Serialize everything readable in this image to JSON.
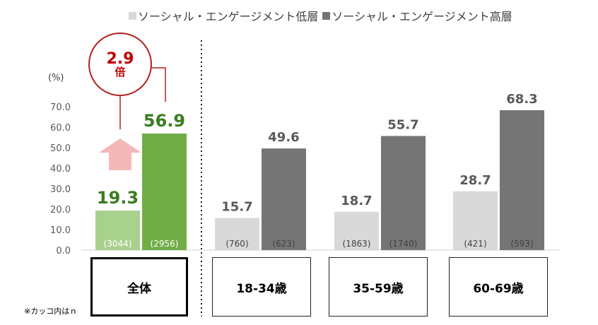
{
  "legend": {
    "low": {
      "label": "ソーシャル・エンゲージメント低層",
      "color": "#d9d9d9"
    },
    "high": {
      "label": "ソーシャル・エンゲージメント高層",
      "color": "#757575"
    }
  },
  "unit_label": "(%)",
  "note": "※カッコ内はｎ",
  "multiplier": {
    "value": "2.9",
    "unit": "倍"
  },
  "chart_data": {
    "type": "bar",
    "categories": [
      "全体",
      "18-34歳",
      "35-59歳",
      "60-69歳"
    ],
    "series": [
      {
        "name": "ソーシャル・エンゲージメント低層",
        "values": [
          19.3,
          15.7,
          18.7,
          28.7
        ],
        "n": [
          "(3044)",
          "(760)",
          "(1863)",
          "(421)"
        ]
      },
      {
        "name": "ソーシャル・エンゲージメント高層",
        "values": [
          56.9,
          49.6,
          55.7,
          68.3
        ],
        "n": [
          "(2956)",
          "(623)",
          "(1740)",
          "(593)"
        ]
      }
    ],
    "overall_colors": {
      "low": "#a9d18e",
      "high": "#70ad47",
      "label": "#3a7d22"
    },
    "ylim": [
      0,
      70
    ],
    "yticks": [
      "0.0",
      "10.0",
      "20.0",
      "30.0",
      "40.0",
      "50.0",
      "60.0",
      "70.0"
    ],
    "grid": false
  }
}
